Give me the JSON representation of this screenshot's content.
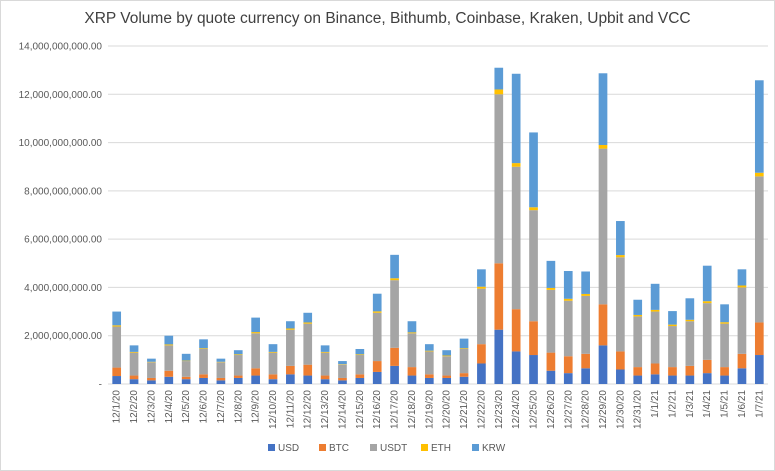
{
  "chart_data": {
    "type": "bar",
    "stacked": true,
    "title": "XRP Volume by quote currency on Binance, Bithumb, Coinbase, Kraken, Upbit and VCC",
    "xlabel": "",
    "ylabel": "",
    "ylim": [
      0,
      14000000000
    ],
    "yticks": [
      0,
      2000000000,
      4000000000,
      6000000000,
      8000000000,
      10000000000,
      12000000000,
      14000000000
    ],
    "ytick_labels": [
      "-",
      "2,000,000,000.00",
      "4,000,000,000.00",
      "6,000,000,000.00",
      "8,000,000,000.00",
      "10,000,000,000.00",
      "12,000,000,000.00",
      "14,000,000,000.00"
    ],
    "grid": true,
    "legend_position": "bottom",
    "categories": [
      "12/1/20",
      "12/2/20",
      "12/3/20",
      "12/4/20",
      "12/5/20",
      "12/6/20",
      "12/7/20",
      "12/8/20",
      "12/9/20",
      "12/10/20",
      "12/11/20",
      "12/12/20",
      "12/13/20",
      "12/14/20",
      "12/15/20",
      "12/16/20",
      "12/17/20",
      "12/18/20",
      "12/19/20",
      "12/20/20",
      "12/21/20",
      "12/22/20",
      "12/23/20",
      "12/24/20",
      "12/25/20",
      "12/26/20",
      "12/27/20",
      "12/28/20",
      "12/29/20",
      "12/30/20",
      "12/31/20",
      "1/1/21",
      "1/2/21",
      "1/3/21",
      "1/4/21",
      "1/5/21",
      "1/6/21",
      "1/7/21"
    ],
    "series": [
      {
        "name": "USD",
        "color": "#4472C4",
        "values": [
          330000000,
          200000000,
          150000000,
          300000000,
          200000000,
          250000000,
          150000000,
          250000000,
          350000000,
          200000000,
          400000000,
          350000000,
          200000000,
          150000000,
          250000000,
          500000000,
          750000000,
          350000000,
          250000000,
          250000000,
          300000000,
          850000000,
          2250000000,
          1350000000,
          1200000000,
          550000000,
          450000000,
          650000000,
          1600000000,
          600000000,
          350000000,
          400000000,
          350000000,
          350000000,
          450000000,
          350000000,
          650000000,
          1200000000
        ]
      },
      {
        "name": "BTC",
        "color": "#ED7D31",
        "values": [
          350000000,
          150000000,
          100000000,
          250000000,
          100000000,
          150000000,
          100000000,
          100000000,
          300000000,
          200000000,
          350000000,
          450000000,
          150000000,
          100000000,
          150000000,
          450000000,
          750000000,
          350000000,
          150000000,
          100000000,
          150000000,
          800000000,
          2750000000,
          1750000000,
          1400000000,
          750000000,
          700000000,
          600000000,
          1700000000,
          750000000,
          350000000,
          450000000,
          350000000,
          400000000,
          550000000,
          350000000,
          600000000,
          1350000000
        ]
      },
      {
        "name": "USDT",
        "color": "#A5A5A5",
        "values": [
          1700000000,
          950000000,
          650000000,
          1050000000,
          650000000,
          1050000000,
          650000000,
          850000000,
          1450000000,
          900000000,
          1500000000,
          1700000000,
          950000000,
          550000000,
          800000000,
          2000000000,
          2800000000,
          1400000000,
          950000000,
          800000000,
          1000000000,
          2300000000,
          7000000000,
          5900000000,
          4600000000,
          2600000000,
          2300000000,
          2400000000,
          6450000000,
          3900000000,
          2100000000,
          2150000000,
          1700000000,
          1850000000,
          2350000000,
          1800000000,
          2750000000,
          6050000000
        ]
      },
      {
        "name": "ETH",
        "color": "#FFC000",
        "values": [
          50000000,
          30000000,
          20000000,
          40000000,
          20000000,
          30000000,
          20000000,
          30000000,
          50000000,
          30000000,
          50000000,
          50000000,
          30000000,
          20000000,
          30000000,
          60000000,
          80000000,
          40000000,
          30000000,
          30000000,
          30000000,
          80000000,
          200000000,
          150000000,
          120000000,
          80000000,
          80000000,
          80000000,
          150000000,
          90000000,
          60000000,
          70000000,
          60000000,
          60000000,
          80000000,
          60000000,
          80000000,
          150000000
        ]
      },
      {
        "name": "KRW",
        "color": "#5B9BD5",
        "values": [
          570000000,
          270000000,
          130000000,
          360000000,
          280000000,
          370000000,
          130000000,
          170000000,
          600000000,
          320000000,
          300000000,
          400000000,
          270000000,
          130000000,
          220000000,
          730000000,
          970000000,
          460000000,
          270000000,
          220000000,
          400000000,
          720000000,
          900000000,
          3700000000,
          3100000000,
          1120000000,
          1150000000,
          930000000,
          2970000000,
          1410000000,
          630000000,
          1080000000,
          560000000,
          890000000,
          1470000000,
          740000000,
          670000000,
          3830000000
        ]
      }
    ]
  }
}
